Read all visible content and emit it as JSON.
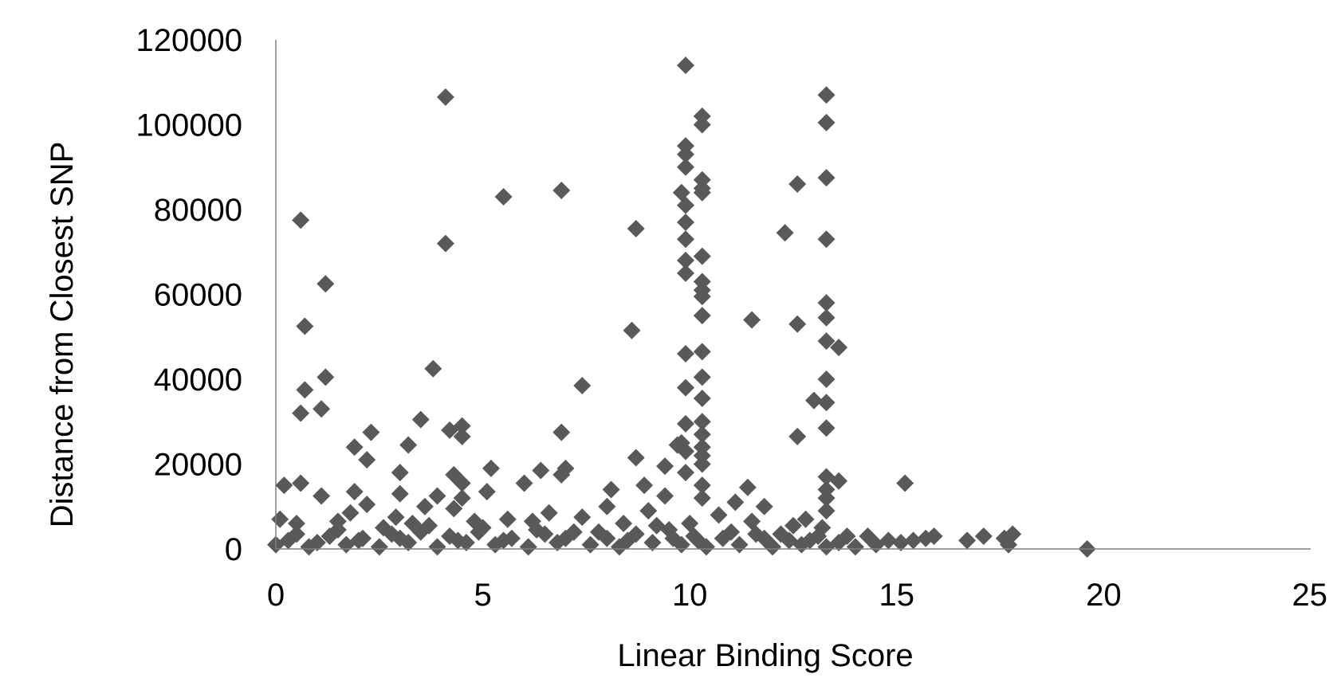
{
  "chart_data": {
    "type": "scatter",
    "title": "",
    "xlabel": "Linear Binding Score",
    "ylabel": "Distance from Closest SNP",
    "xlim": [
      0,
      25
    ],
    "ylim": [
      0,
      120000
    ],
    "xticks": [
      0,
      5,
      10,
      15,
      20,
      25
    ],
    "yticks": [
      0,
      20000,
      40000,
      60000,
      80000,
      100000,
      120000
    ],
    "xtick_labels": [
      "0",
      "5",
      "10",
      "15",
      "20",
      "25"
    ],
    "ytick_labels": [
      "0",
      "20000",
      "40000",
      "60000",
      "80000",
      "100000",
      "120000"
    ],
    "grid": false,
    "legend": "none",
    "marker": "diamond",
    "marker_color": "#595959",
    "axis_color": "#808080",
    "points": [
      [
        9.9,
        114000
      ],
      [
        4.1,
        106500
      ],
      [
        13.3,
        107000
      ],
      [
        10.3,
        102000
      ],
      [
        10.3,
        100000
      ],
      [
        13.3,
        100500
      ],
      [
        9.9,
        95000
      ],
      [
        9.9,
        93000
      ],
      [
        9.9,
        90000
      ],
      [
        10.3,
        87000
      ],
      [
        10.3,
        85000
      ],
      [
        10.3,
        84000
      ],
      [
        13.3,
        87500
      ],
      [
        12.6,
        86000
      ],
      [
        9.8,
        84000
      ],
      [
        6.9,
        84500
      ],
      [
        5.5,
        83000
      ],
      [
        9.9,
        81000
      ],
      [
        9.9,
        77000
      ],
      [
        0.6,
        77500
      ],
      [
        8.7,
        75500
      ],
      [
        12.3,
        74500
      ],
      [
        9.9,
        73000
      ],
      [
        13.3,
        73000
      ],
      [
        4.1,
        72000
      ],
      [
        10.3,
        69000
      ],
      [
        9.9,
        68000
      ],
      [
        9.9,
        65000
      ],
      [
        10.3,
        63000
      ],
      [
        1.2,
        62500
      ],
      [
        10.3,
        61000
      ],
      [
        10.3,
        59500
      ],
      [
        13.3,
        58000
      ],
      [
        10.3,
        55000
      ],
      [
        13.3,
        54500
      ],
      [
        11.5,
        54000
      ],
      [
        12.6,
        53000
      ],
      [
        0.7,
        52500
      ],
      [
        8.6,
        51500
      ],
      [
        13.3,
        49000
      ],
      [
        13.6,
        47500
      ],
      [
        10.3,
        46500
      ],
      [
        9.9,
        46000
      ],
      [
        3.8,
        42500
      ],
      [
        1.2,
        40500
      ],
      [
        10.3,
        40500
      ],
      [
        13.3,
        40000
      ],
      [
        0.7,
        37500
      ],
      [
        9.9,
        38000
      ],
      [
        7.4,
        38500
      ],
      [
        10.3,
        35500
      ],
      [
        13.0,
        35000
      ],
      [
        13.3,
        34500
      ],
      [
        1.1,
        33000
      ],
      [
        0.6,
        32000
      ],
      [
        3.5,
        30500
      ],
      [
        10.3,
        30000
      ],
      [
        9.9,
        29500
      ],
      [
        4.5,
        29000
      ],
      [
        4.2,
        28000
      ],
      [
        13.3,
        28500
      ],
      [
        6.9,
        27500
      ],
      [
        2.3,
        27500
      ],
      [
        10.3,
        27000
      ],
      [
        12.6,
        26500
      ],
      [
        4.5,
        26500
      ],
      [
        9.8,
        25000
      ],
      [
        9.7,
        24500
      ],
      [
        3.2,
        24500
      ],
      [
        10.3,
        24000
      ],
      [
        1.9,
        24000
      ],
      [
        9.9,
        23000
      ],
      [
        10.3,
        22000
      ],
      [
        2.2,
        21000
      ],
      [
        8.7,
        21500
      ],
      [
        10.3,
        20000
      ],
      [
        9.4,
        19500
      ],
      [
        7.0,
        19000
      ],
      [
        5.2,
        19000
      ],
      [
        6.4,
        18500
      ],
      [
        3.0,
        18000
      ],
      [
        9.9,
        18000
      ],
      [
        4.3,
        17500
      ],
      [
        6.9,
        17500
      ],
      [
        13.3,
        17000
      ],
      [
        13.6,
        16000
      ],
      [
        0.2,
        15000
      ],
      [
        0.6,
        15500
      ],
      [
        4.5,
        15500
      ],
      [
        6.0,
        15500
      ],
      [
        8.9,
        15000
      ],
      [
        10.3,
        15000
      ],
      [
        15.2,
        15500
      ],
      [
        11.4,
        14500
      ],
      [
        8.1,
        14000
      ],
      [
        5.1,
        13500
      ],
      [
        13.3,
        14000
      ],
      [
        1.9,
        13500
      ],
      [
        3.0,
        13000
      ],
      [
        1.1,
        12500
      ],
      [
        3.9,
        12500
      ],
      [
        9.4,
        12500
      ],
      [
        4.5,
        12000
      ],
      [
        10.3,
        12000
      ],
      [
        13.3,
        12000
      ],
      [
        11.1,
        11000
      ],
      [
        2.2,
        10500
      ],
      [
        8.0,
        10000
      ],
      [
        3.6,
        10000
      ],
      [
        11.8,
        10000
      ],
      [
        1.8,
        8500
      ],
      [
        6.6,
        8500
      ],
      [
        4.3,
        9500
      ],
      [
        5.6,
        7000
      ],
      [
        7.4,
        7500
      ],
      [
        0.1,
        7000
      ],
      [
        2.9,
        7500
      ],
      [
        10.7,
        8000
      ],
      [
        12.8,
        7000
      ],
      [
        9.0,
        9000
      ],
      [
        6.2,
        6500
      ],
      [
        0.5,
        6000
      ],
      [
        1.5,
        6500
      ],
      [
        3.3,
        6000
      ],
      [
        4.8,
        6500
      ],
      [
        8.4,
        6000
      ],
      [
        11.5,
        6500
      ],
      [
        12.5,
        5500
      ],
      [
        13.8,
        3000
      ],
      [
        14.3,
        3000
      ],
      [
        14.8,
        2000
      ],
      [
        15.1,
        1500
      ],
      [
        15.4,
        2000
      ],
      [
        15.7,
        2500
      ],
      [
        15.9,
        3000
      ],
      [
        16.7,
        2000
      ],
      [
        17.1,
        3000
      ],
      [
        17.6,
        2500
      ],
      [
        17.8,
        3500
      ],
      [
        17.7,
        1000
      ],
      [
        19.6,
        0
      ],
      [
        0.0,
        1000
      ],
      [
        0.3,
        2000
      ],
      [
        0.8,
        500
      ],
      [
        1.3,
        3000
      ],
      [
        1.7,
        1000
      ],
      [
        2.1,
        2500
      ],
      [
        2.5,
        500
      ],
      [
        2.8,
        3500
      ],
      [
        3.2,
        1500
      ],
      [
        3.5,
        4000
      ],
      [
        3.9,
        500
      ],
      [
        4.2,
        3000
      ],
      [
        4.6,
        1500
      ],
      [
        4.9,
        4000
      ],
      [
        5.3,
        1000
      ],
      [
        5.7,
        2500
      ],
      [
        6.1,
        500
      ],
      [
        6.5,
        3500
      ],
      [
        6.8,
        1500
      ],
      [
        7.2,
        4000
      ],
      [
        7.6,
        1000
      ],
      [
        8.0,
        2500
      ],
      [
        8.3,
        500
      ],
      [
        8.7,
        3500
      ],
      [
        9.1,
        1500
      ],
      [
        9.5,
        4500
      ],
      [
        9.8,
        1000
      ],
      [
        10.1,
        3000
      ],
      [
        10.4,
        500
      ],
      [
        10.8,
        2500
      ],
      [
        11.2,
        1000
      ],
      [
        11.6,
        3500
      ],
      [
        12.0,
        500
      ],
      [
        12.4,
        2000
      ],
      [
        12.7,
        1000
      ],
      [
        13.1,
        3000
      ],
      [
        13.3,
        500
      ],
      [
        13.6,
        1500
      ],
      [
        14.0,
        500
      ],
      [
        14.5,
        1000
      ],
      [
        0.5,
        3500
      ],
      [
        1.0,
        1500
      ],
      [
        1.5,
        4500
      ],
      [
        2.0,
        2000
      ],
      [
        2.6,
        5000
      ],
      [
        3.0,
        2500
      ],
      [
        3.7,
        5500
      ],
      [
        4.4,
        2000
      ],
      [
        5.0,
        5000
      ],
      [
        5.5,
        2000
      ],
      [
        6.3,
        4500
      ],
      [
        7.0,
        2500
      ],
      [
        7.8,
        4000
      ],
      [
        8.5,
        2000
      ],
      [
        9.2,
        5500
      ],
      [
        9.6,
        2500
      ],
      [
        10.0,
        6000
      ],
      [
        10.2,
        2000
      ],
      [
        11.0,
        4000
      ],
      [
        11.8,
        2500
      ],
      [
        12.2,
        3500
      ],
      [
        12.9,
        2000
      ],
      [
        13.2,
        5000
      ],
      [
        13.3,
        9000
      ]
    ]
  }
}
